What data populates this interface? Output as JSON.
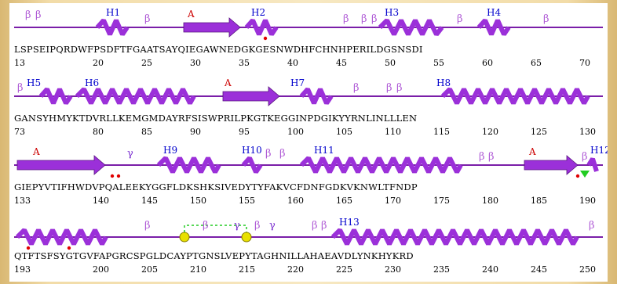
{
  "colors": {
    "helix": "#9b30d9",
    "strand": "#9b30d9",
    "line": "#7a1ea8",
    "helix_label": "#0000cc",
    "strand_label": "#cc0000",
    "beta_turn": "#b05cd6",
    "gamma_turn": "#7b2fd0",
    "star": "#e00000",
    "disulfide": "#22cc22",
    "disulfide_node": "#e8e000"
  },
  "rows": [
    {
      "sequence": "LSPSEIPQRDWFPSDFTFGAATSAYQIEGAWNEDGKGESNWDHFCHNHPERILDGSNSDI",
      "start": 13,
      "ticks": [
        "13",
        "20",
        "25",
        "30",
        "35",
        "40",
        "45",
        "50",
        "55",
        "60",
        "65",
        "70"
      ],
      "helices": [
        {
          "label": "H1"
        },
        {
          "label": "H2"
        },
        {
          "label": "H3"
        },
        {
          "label": "H4"
        }
      ],
      "strands": [
        {
          "label": "A"
        }
      ],
      "turns": [
        "β",
        "β",
        "β",
        "β",
        "β",
        "β",
        "β",
        "β"
      ]
    },
    {
      "sequence": "GANSYHMYKTDVRLLKEMGMDAYRFSISWPRILPKGTKEGGINPDGIKYYRNLINLLLEN",
      "start": 73,
      "ticks": [
        "73",
        "80",
        "85",
        "90",
        "95",
        "100",
        "105",
        "110",
        "115",
        "120",
        "125",
        "130"
      ],
      "helices": [
        {
          "label": "H5"
        },
        {
          "label": "H6"
        },
        {
          "label": "H7"
        },
        {
          "label": "H8"
        }
      ],
      "strands": [
        {
          "label": "A"
        }
      ],
      "turns": [
        "β",
        "β",
        "β",
        "β"
      ]
    },
    {
      "sequence": "GIEPYVTIFHWDVPQALEEKYGGFLDKSHKSIVEDYTYFAKVCFDNFGDKVKNWLTFNDP",
      "start": 133,
      "ticks": [
        "133",
        "140",
        "145",
        "150",
        "155",
        "160",
        "165",
        "170",
        "175",
        "180",
        "185",
        "190"
      ],
      "helices": [
        {
          "label": "H9"
        },
        {
          "label": "H10"
        },
        {
          "label": "H11"
        },
        {
          "label": "H12"
        }
      ],
      "strands": [
        {
          "label": "A"
        },
        {
          "label": "A"
        }
      ],
      "turns": [
        "γ",
        "β",
        "β",
        "β",
        "β",
        "β"
      ]
    },
    {
      "sequence": "QTFTSFSYGTGVFAPGRCSPGLDCAYPTGNSLVEPYTAGHNILLAHAEAVDLYNKHYKRD",
      "start": 193,
      "ticks": [
        "193",
        "200",
        "205",
        "210",
        "215",
        "220",
        "225",
        "230",
        "235",
        "240",
        "245",
        "250"
      ],
      "helices": [
        {
          "label": "H13"
        }
      ],
      "strands": [],
      "turns": [
        "β",
        "β",
        "γ",
        "β",
        "γ",
        "β",
        "β",
        "β"
      ]
    }
  ]
}
